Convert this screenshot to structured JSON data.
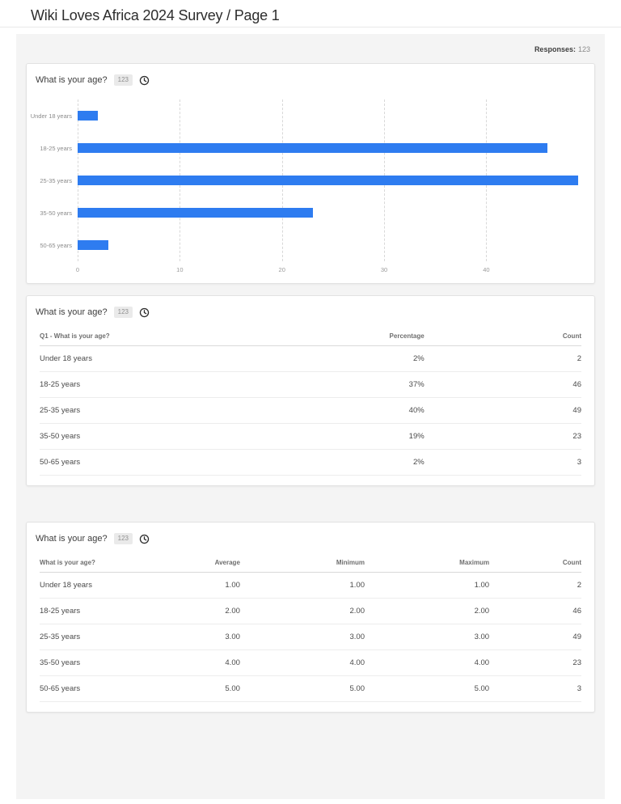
{
  "page": {
    "title": "Wiki Loves Africa 2024 Survey / Page 1",
    "responses_label": "Responses:",
    "responses_value": "123"
  },
  "cards": [
    {
      "title": "What is your age?",
      "badge": "123",
      "icon": "clock-icon"
    },
    {
      "title": "What is your age?",
      "badge": "123",
      "icon": "clock-icon"
    },
    {
      "title": "What is your age?",
      "badge": "123",
      "icon": "clock-icon"
    }
  ],
  "chart_data": {
    "type": "bar",
    "orientation": "horizontal",
    "title": "What is your age?",
    "categories": [
      "Under 18 years",
      "18-25 years",
      "25-35 years",
      "35-50 years",
      "50-65 years"
    ],
    "values": [
      2,
      46,
      49,
      23,
      3
    ],
    "x_ticks": [
      0,
      10,
      20,
      30,
      40
    ],
    "xlim": [
      0,
      49.7
    ],
    "bar_color": "#2e7cf0",
    "grid": "dashed-vertical-gridlines",
    "legend": "none",
    "xlabel": "",
    "ylabel": ""
  },
  "percentage_table": {
    "columns": [
      "Q1 - What is your age?",
      "Percentage",
      "Count"
    ],
    "rows": [
      [
        "Under 18 years",
        "2%",
        "2"
      ],
      [
        "18-25 years",
        "37%",
        "46"
      ],
      [
        "25-35 years",
        "40%",
        "49"
      ],
      [
        "35-50 years",
        "19%",
        "23"
      ],
      [
        "50-65 years",
        "2%",
        "3"
      ]
    ]
  },
  "stats_table": {
    "columns": [
      "What is your age?",
      "Average",
      "Minimum",
      "Maximum",
      "Count"
    ],
    "rows": [
      [
        "Under 18 years",
        "1.00",
        "1.00",
        "1.00",
        "2"
      ],
      [
        "18-25 years",
        "2.00",
        "2.00",
        "2.00",
        "46"
      ],
      [
        "25-35 years",
        "3.00",
        "3.00",
        "3.00",
        "49"
      ],
      [
        "35-50 years",
        "4.00",
        "4.00",
        "4.00",
        "23"
      ],
      [
        "50-65 years",
        "5.00",
        "5.00",
        "5.00",
        "3"
      ]
    ]
  }
}
